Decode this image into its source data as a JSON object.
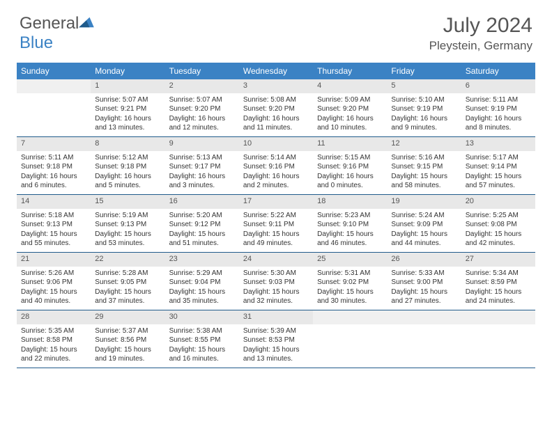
{
  "logo": {
    "text1": "General",
    "text2": "Blue"
  },
  "title": "July 2024",
  "location": "Pleystein, Germany",
  "colors": {
    "brand_blue": "#3b82c4",
    "header_text": "#555555",
    "row_border": "#1f5a8a",
    "daynum_bg": "#e8e8e8",
    "blank_bg": "#f0f0f0",
    "text": "#333333",
    "bg": "#ffffff"
  },
  "day_headers": [
    "Sunday",
    "Monday",
    "Tuesday",
    "Wednesday",
    "Thursday",
    "Friday",
    "Saturday"
  ],
  "weeks": [
    [
      {
        "blank": true
      },
      {
        "day": "1",
        "sunrise": "5:07 AM",
        "sunset": "9:21 PM",
        "daylight": "16 hours and 13 minutes."
      },
      {
        "day": "2",
        "sunrise": "5:07 AM",
        "sunset": "9:20 PM",
        "daylight": "16 hours and 12 minutes."
      },
      {
        "day": "3",
        "sunrise": "5:08 AM",
        "sunset": "9:20 PM",
        "daylight": "16 hours and 11 minutes."
      },
      {
        "day": "4",
        "sunrise": "5:09 AM",
        "sunset": "9:20 PM",
        "daylight": "16 hours and 10 minutes."
      },
      {
        "day": "5",
        "sunrise": "5:10 AM",
        "sunset": "9:19 PM",
        "daylight": "16 hours and 9 minutes."
      },
      {
        "day": "6",
        "sunrise": "5:11 AM",
        "sunset": "9:19 PM",
        "daylight": "16 hours and 8 minutes."
      }
    ],
    [
      {
        "day": "7",
        "sunrise": "5:11 AM",
        "sunset": "9:18 PM",
        "daylight": "16 hours and 6 minutes."
      },
      {
        "day": "8",
        "sunrise": "5:12 AM",
        "sunset": "9:18 PM",
        "daylight": "16 hours and 5 minutes."
      },
      {
        "day": "9",
        "sunrise": "5:13 AM",
        "sunset": "9:17 PM",
        "daylight": "16 hours and 3 minutes."
      },
      {
        "day": "10",
        "sunrise": "5:14 AM",
        "sunset": "9:16 PM",
        "daylight": "16 hours and 2 minutes."
      },
      {
        "day": "11",
        "sunrise": "5:15 AM",
        "sunset": "9:16 PM",
        "daylight": "16 hours and 0 minutes."
      },
      {
        "day": "12",
        "sunrise": "5:16 AM",
        "sunset": "9:15 PM",
        "daylight": "15 hours and 58 minutes."
      },
      {
        "day": "13",
        "sunrise": "5:17 AM",
        "sunset": "9:14 PM",
        "daylight": "15 hours and 57 minutes."
      }
    ],
    [
      {
        "day": "14",
        "sunrise": "5:18 AM",
        "sunset": "9:13 PM",
        "daylight": "15 hours and 55 minutes."
      },
      {
        "day": "15",
        "sunrise": "5:19 AM",
        "sunset": "9:13 PM",
        "daylight": "15 hours and 53 minutes."
      },
      {
        "day": "16",
        "sunrise": "5:20 AM",
        "sunset": "9:12 PM",
        "daylight": "15 hours and 51 minutes."
      },
      {
        "day": "17",
        "sunrise": "5:22 AM",
        "sunset": "9:11 PM",
        "daylight": "15 hours and 49 minutes."
      },
      {
        "day": "18",
        "sunrise": "5:23 AM",
        "sunset": "9:10 PM",
        "daylight": "15 hours and 46 minutes."
      },
      {
        "day": "19",
        "sunrise": "5:24 AM",
        "sunset": "9:09 PM",
        "daylight": "15 hours and 44 minutes."
      },
      {
        "day": "20",
        "sunrise": "5:25 AM",
        "sunset": "9:08 PM",
        "daylight": "15 hours and 42 minutes."
      }
    ],
    [
      {
        "day": "21",
        "sunrise": "5:26 AM",
        "sunset": "9:06 PM",
        "daylight": "15 hours and 40 minutes."
      },
      {
        "day": "22",
        "sunrise": "5:28 AM",
        "sunset": "9:05 PM",
        "daylight": "15 hours and 37 minutes."
      },
      {
        "day": "23",
        "sunrise": "5:29 AM",
        "sunset": "9:04 PM",
        "daylight": "15 hours and 35 minutes."
      },
      {
        "day": "24",
        "sunrise": "5:30 AM",
        "sunset": "9:03 PM",
        "daylight": "15 hours and 32 minutes."
      },
      {
        "day": "25",
        "sunrise": "5:31 AM",
        "sunset": "9:02 PM",
        "daylight": "15 hours and 30 minutes."
      },
      {
        "day": "26",
        "sunrise": "5:33 AM",
        "sunset": "9:00 PM",
        "daylight": "15 hours and 27 minutes."
      },
      {
        "day": "27",
        "sunrise": "5:34 AM",
        "sunset": "8:59 PM",
        "daylight": "15 hours and 24 minutes."
      }
    ],
    [
      {
        "day": "28",
        "sunrise": "5:35 AM",
        "sunset": "8:58 PM",
        "daylight": "15 hours and 22 minutes."
      },
      {
        "day": "29",
        "sunrise": "5:37 AM",
        "sunset": "8:56 PM",
        "daylight": "15 hours and 19 minutes."
      },
      {
        "day": "30",
        "sunrise": "5:38 AM",
        "sunset": "8:55 PM",
        "daylight": "15 hours and 16 minutes."
      },
      {
        "day": "31",
        "sunrise": "5:39 AM",
        "sunset": "8:53 PM",
        "daylight": "15 hours and 13 minutes."
      },
      {
        "blank": true
      },
      {
        "blank": true
      },
      {
        "blank": true
      }
    ]
  ],
  "labels": {
    "sunrise_prefix": "Sunrise: ",
    "sunset_prefix": "Sunset: ",
    "daylight_prefix": "Daylight: "
  }
}
